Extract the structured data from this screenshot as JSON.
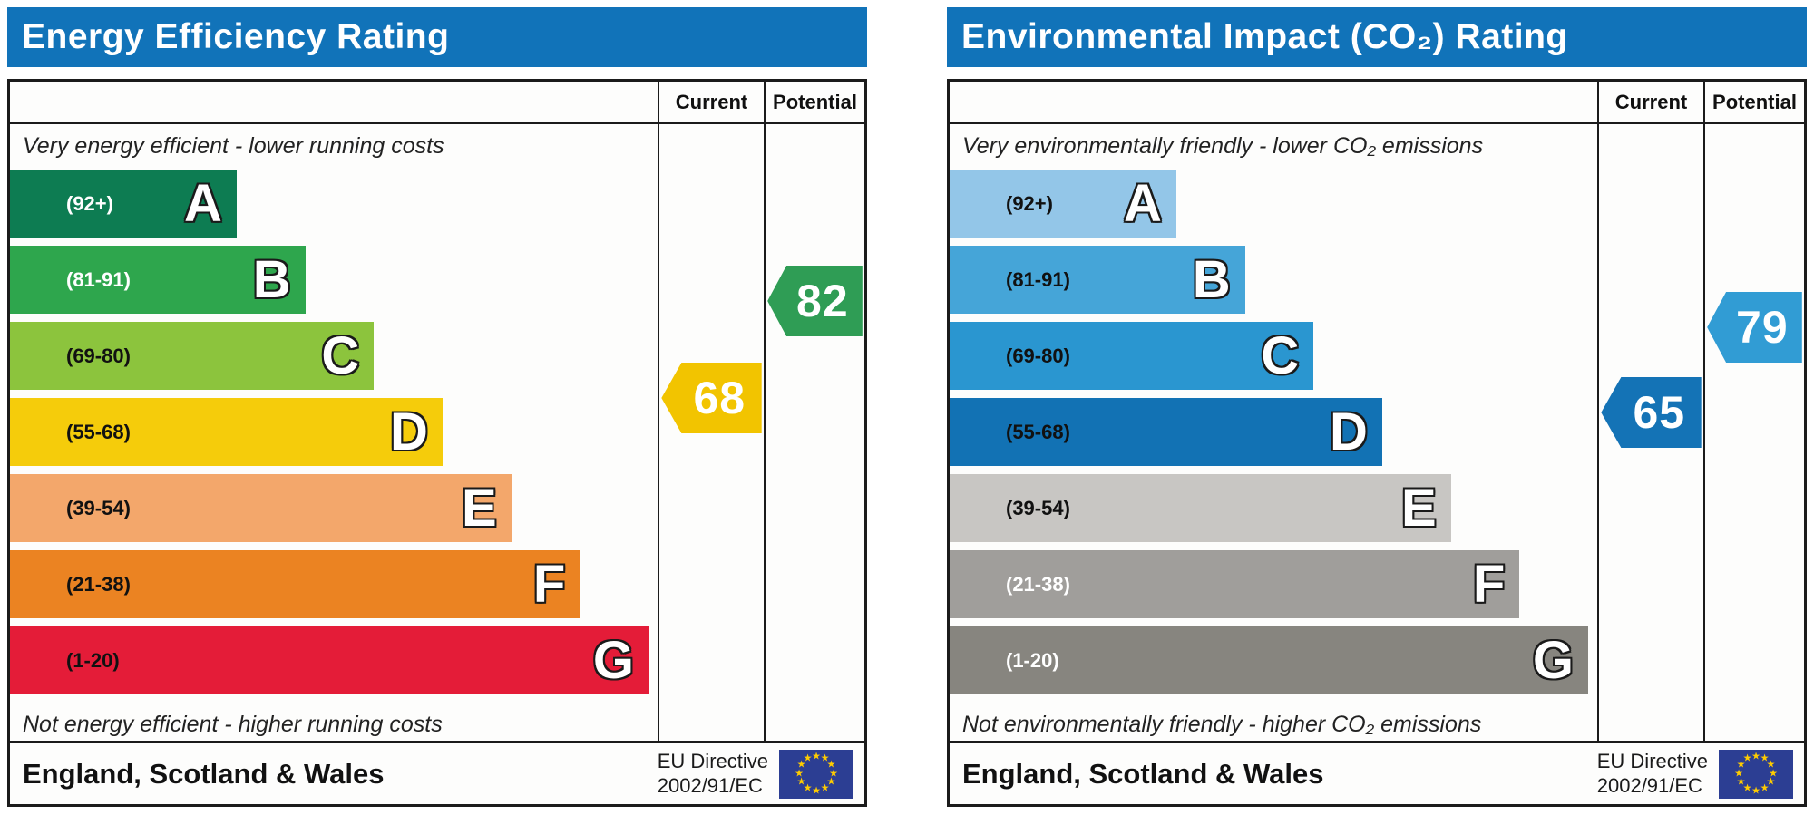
{
  "colors": {
    "header_bar": "#1173b9",
    "table_border": "#1b1b1b",
    "flag_blue": "#2c3e93",
    "flag_star": "#ffcc00"
  },
  "panels": [
    {
      "title": "Energy Efficiency Rating",
      "columns": {
        "current": "Current",
        "potential": "Potential"
      },
      "top_caption": "Very energy efficient - lower running costs",
      "bottom_caption": "Not energy efficient - higher running costs",
      "bands": [
        {
          "letter": "A",
          "range": "(92+)",
          "min": 92,
          "max": 100,
          "color": "#0d7c52",
          "label_color": "#ffffff"
        },
        {
          "letter": "B",
          "range": "(81-91)",
          "min": 81,
          "max": 91,
          "color": "#2ea64d",
          "label_color": "#ffffff"
        },
        {
          "letter": "C",
          "range": "(69-80)",
          "min": 69,
          "max": 80,
          "color": "#8cc43d",
          "label_color": "#111111"
        },
        {
          "letter": "D",
          "range": "(55-68)",
          "min": 55,
          "max": 68,
          "color": "#f5cc0b",
          "label_color": "#111111"
        },
        {
          "letter": "E",
          "range": "(39-54)",
          "min": 39,
          "max": 54,
          "color": "#f3a76b",
          "label_color": "#111111"
        },
        {
          "letter": "F",
          "range": "(21-38)",
          "min": 21,
          "max": 38,
          "color": "#eb8322",
          "label_color": "#111111"
        },
        {
          "letter": "G",
          "range": "(1-20)",
          "min": 1,
          "max": 20,
          "color": "#e41c38",
          "label_color": "#111111"
        }
      ],
      "current": {
        "value": 68,
        "color": "#f2c400"
      },
      "potential": {
        "value": 82,
        "color": "#2f9d55"
      },
      "footer": {
        "region": "England, Scotland & Wales",
        "directive_line1": "EU Directive",
        "directive_line2": "2002/91/EC"
      }
    },
    {
      "title": "Environmental Impact (CO₂) Rating",
      "columns": {
        "current": "Current",
        "potential": "Potential"
      },
      "top_caption": "Very environmentally friendly - lower CO₂ emissions",
      "bottom_caption": "Not environmentally friendly - higher CO₂ emissions",
      "bands": [
        {
          "letter": "A",
          "range": "(92+)",
          "min": 92,
          "max": 100,
          "color": "#93c6e8",
          "label_color": "#111111"
        },
        {
          "letter": "B",
          "range": "(81-91)",
          "min": 81,
          "max": 91,
          "color": "#45a5d8",
          "label_color": "#111111"
        },
        {
          "letter": "C",
          "range": "(69-80)",
          "min": 69,
          "max": 80,
          "color": "#2a96d0",
          "label_color": "#111111"
        },
        {
          "letter": "D",
          "range": "(55-68)",
          "min": 55,
          "max": 68,
          "color": "#1272b4",
          "label_color": "#111111"
        },
        {
          "letter": "E",
          "range": "(39-54)",
          "min": 39,
          "max": 54,
          "color": "#c8c6c3",
          "label_color": "#111111"
        },
        {
          "letter": "F",
          "range": "(21-38)",
          "min": 21,
          "max": 38,
          "color": "#a09e9b",
          "label_color": "#ffffff"
        },
        {
          "letter": "G",
          "range": "(1-20)",
          "min": 1,
          "max": 20,
          "color": "#87857f",
          "label_color": "#ffffff"
        }
      ],
      "current": {
        "value": 65,
        "color": "#1473b6"
      },
      "potential": {
        "value": 79,
        "color": "#319cd4"
      },
      "footer": {
        "region": "England, Scotland & Wales",
        "directive_line1": "EU Directive",
        "directive_line2": "2002/91/EC"
      }
    }
  ],
  "chart_data": [
    {
      "type": "bar",
      "title": "Energy Efficiency Rating",
      "categories": [
        "A (92+)",
        "B (81-91)",
        "C (69-80)",
        "D (55-68)",
        "E (39-54)",
        "F (21-38)",
        "G (1-20)"
      ],
      "band_colors": [
        "#0d7c52",
        "#2ea64d",
        "#8cc43d",
        "#f5cc0b",
        "#f3a76b",
        "#eb8322",
        "#e41c38"
      ],
      "series": [
        {
          "name": "Current",
          "values": [
            68
          ]
        },
        {
          "name": "Potential",
          "values": [
            82
          ]
        }
      ],
      "annotations": [
        "Very energy efficient - lower running costs",
        "Not energy efficient - higher running costs",
        "England, Scotland & Wales",
        "EU Directive 2002/91/EC"
      ],
      "value_range": [
        1,
        100
      ]
    },
    {
      "type": "bar",
      "title": "Environmental Impact (CO₂) Rating",
      "categories": [
        "A (92+)",
        "B (81-91)",
        "C (69-80)",
        "D (55-68)",
        "E (39-54)",
        "F (21-38)",
        "G (1-20)"
      ],
      "band_colors": [
        "#93c6e8",
        "#45a5d8",
        "#2a96d0",
        "#1272b4",
        "#c8c6c3",
        "#a09e9b",
        "#87857f"
      ],
      "series": [
        {
          "name": "Current",
          "values": [
            65
          ]
        },
        {
          "name": "Potential",
          "values": [
            79
          ]
        }
      ],
      "annotations": [
        "Very environmentally friendly - lower CO₂ emissions",
        "Not environmentally friendly - higher CO₂ emissions",
        "England, Scotland & Wales",
        "EU Directive 2002/91/EC"
      ],
      "value_range": [
        1,
        100
      ]
    }
  ]
}
